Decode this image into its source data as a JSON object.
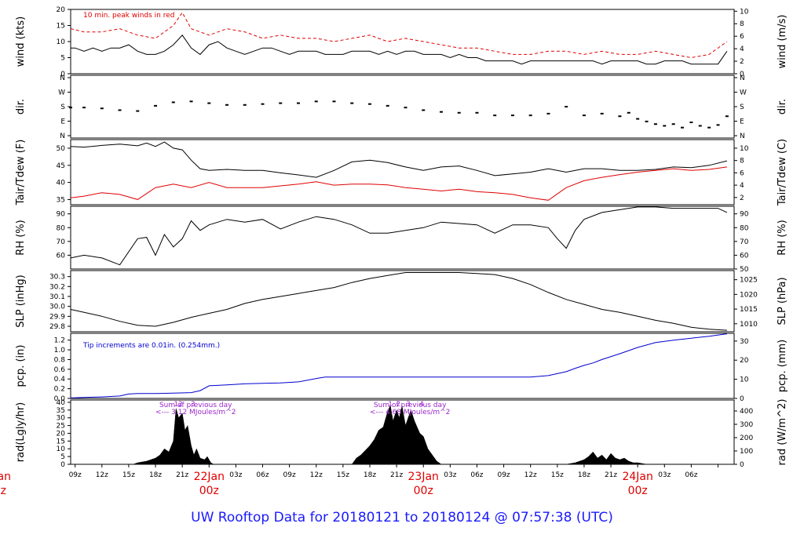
{
  "title": "UW Rooftop Data for 20180121  to  20180124 @ 07:57:38  (UTC)",
  "chart_data": [
    {
      "type": "line",
      "name": "wind",
      "ylabel": "wind (kts)",
      "ylabel_right": "wind (m/s)",
      "ylim": [
        0,
        20
      ],
      "yticks": [
        0,
        5,
        10,
        15,
        20
      ],
      "yticks_right": [
        0,
        2,
        4,
        6,
        8,
        10
      ],
      "ylim_right": [
        0,
        10.29
      ],
      "annotation": "10 min. peak winds in red",
      "series": [
        {
          "color": "#000000",
          "style": "line",
          "x": [
            8.5,
            9,
            10,
            11,
            12,
            13,
            14,
            15,
            16,
            17,
            18,
            19,
            20,
            21,
            22,
            23,
            24,
            25,
            26,
            27,
            28,
            29,
            30,
            31,
            32,
            33,
            34,
            35,
            36,
            37,
            38,
            39,
            40,
            41,
            42,
            43,
            44,
            45,
            46,
            47,
            48,
            49,
            50,
            51,
            52,
            53,
            54,
            55,
            56,
            57,
            58,
            59,
            60,
            61,
            62,
            63,
            64,
            65,
            66,
            67,
            68,
            69,
            70,
            71,
            72,
            73,
            74,
            75,
            76,
            77,
            78,
            79,
            80,
            81,
            82
          ],
          "values": [
            8,
            8,
            7,
            8,
            7,
            8,
            8,
            9,
            7,
            6,
            6,
            7,
            9,
            12,
            8,
            6,
            9,
            10,
            8,
            7,
            6,
            7,
            8,
            8,
            7,
            6,
            7,
            7,
            7,
            6,
            6,
            6,
            7,
            7,
            7,
            6,
            7,
            6,
            7,
            7,
            6,
            6,
            6,
            5,
            6,
            5,
            5,
            4,
            4,
            4,
            4,
            3,
            4,
            4,
            4,
            4,
            4,
            4,
            4,
            4,
            3,
            4,
            4,
            4,
            4,
            3,
            3,
            4,
            4,
            4,
            3,
            3,
            3,
            3,
            7
          ]
        },
        {
          "color": "#e00000",
          "style": "dash",
          "x": [
            8.5,
            10,
            12,
            14,
            16,
            18,
            20,
            21,
            22,
            24,
            26,
            28,
            30,
            32,
            34,
            36,
            38,
            40,
            42,
            44,
            46,
            48,
            50,
            52,
            54,
            56,
            58,
            60,
            62,
            64,
            66,
            68,
            70,
            72,
            74,
            76,
            78,
            80,
            82
          ],
          "values": [
            14,
            13,
            13,
            14,
            12,
            11,
            15,
            19,
            14,
            12,
            14,
            13,
            11,
            12,
            11,
            11,
            10,
            11,
            12,
            10,
            11,
            10,
            9,
            8,
            8,
            7,
            6,
            6,
            7,
            7,
            6,
            7,
            6,
            6,
            7,
            6,
            5,
            6,
            10
          ]
        }
      ]
    },
    {
      "type": "scatter",
      "name": "dir",
      "ylabel": "dir.",
      "ylabel_right": "dir.",
      "yticks_labels": [
        "N",
        "E",
        "S",
        "W",
        "N"
      ],
      "ylim": [
        0,
        360
      ],
      "series": [
        {
          "color": "#000000",
          "x": [
            8.5,
            10,
            12,
            14,
            16,
            18,
            20,
            22,
            24,
            26,
            28,
            30,
            32,
            34,
            36,
            38,
            40,
            42,
            44,
            46,
            48,
            50,
            52,
            54,
            56,
            58,
            60,
            62,
            64,
            66,
            68,
            70,
            71,
            72,
            73,
            74,
            75,
            76,
            77,
            78,
            79,
            80,
            81,
            82
          ],
          "values": [
            175,
            175,
            170,
            160,
            155,
            185,
            205,
            210,
            200,
            190,
            190,
            195,
            200,
            200,
            210,
            210,
            200,
            195,
            185,
            175,
            160,
            150,
            145,
            145,
            130,
            130,
            130,
            140,
            180,
            130,
            140,
            125,
            145,
            110,
            95,
            80,
            70,
            80,
            60,
            90,
            70,
            60,
            75,
            125
          ]
        }
      ]
    },
    {
      "type": "line",
      "name": "temp",
      "ylabel": "Tair/Tdew (F)",
      "ylabel_right": "Tair/Tdew (C)",
      "ylim": [
        33.5,
        52.5
      ],
      "yticks": [
        35,
        40,
        45,
        50
      ],
      "yticks_right": [
        2,
        4,
        6,
        8,
        10
      ],
      "series": [
        {
          "color": "#000000",
          "x": [
            8.5,
            10,
            12,
            14,
            16,
            17,
            18,
            19,
            20,
            21,
            22,
            23,
            24,
            26,
            28,
            30,
            32,
            34,
            36,
            38,
            40,
            42,
            44,
            46,
            48,
            50,
            52,
            54,
            56,
            58,
            60,
            62,
            64,
            66,
            68,
            70,
            72,
            74,
            76,
            78,
            80,
            82
          ],
          "values": [
            50.5,
            50.3,
            50.8,
            51.2,
            50.7,
            51.5,
            50.5,
            51.8,
            50,
            49.5,
            46.5,
            44,
            43.5,
            43.8,
            43.5,
            43.5,
            42.8,
            42.2,
            41.5,
            43.5,
            46,
            46.5,
            45.8,
            44.5,
            43.5,
            44.5,
            44.8,
            43.5,
            42,
            42.5,
            43,
            44,
            43,
            44,
            44,
            43.5,
            43.5,
            43.8,
            44.5,
            44.3,
            45,
            46.3
          ]
        },
        {
          "color": "#e00000",
          "x": [
            8.5,
            10,
            12,
            14,
            16,
            18,
            20,
            22,
            24,
            26,
            28,
            30,
            32,
            34,
            36,
            38,
            40,
            42,
            44,
            46,
            48,
            50,
            52,
            54,
            56,
            58,
            60,
            62,
            64,
            66,
            68,
            70,
            72,
            74,
            76,
            78,
            80,
            82
          ],
          "values": [
            35.5,
            36,
            37,
            36.5,
            35,
            38.5,
            39.5,
            38.5,
            40,
            38.5,
            38.5,
            38.5,
            39,
            39.5,
            40.2,
            39.2,
            39.5,
            39.5,
            39.3,
            38.5,
            38,
            37.5,
            38,
            37.3,
            37,
            36.5,
            35.5,
            34.8,
            38.5,
            40.5,
            41.5,
            42.3,
            43,
            43.5,
            44,
            43.5,
            43.8,
            44.5
          ]
        }
      ]
    },
    {
      "type": "line",
      "name": "rh",
      "ylabel": "RH (%)",
      "ylabel_right": "RH (%)",
      "ylim": [
        50,
        95.5
      ],
      "yticks": [
        60,
        70,
        80,
        90
      ],
      "yticks_right": [
        50,
        60,
        70,
        80,
        90
      ],
      "series": [
        {
          "color": "#000000",
          "x": [
            8.5,
            10,
            12,
            14,
            16,
            17,
            18,
            19,
            20,
            21,
            22,
            23,
            24,
            26,
            28,
            30,
            32,
            34,
            36,
            38,
            40,
            42,
            44,
            46,
            48,
            50,
            52,
            54,
            56,
            58,
            60,
            62,
            63,
            64,
            65,
            66,
            68,
            70,
            72,
            74,
            76,
            78,
            80,
            81,
            82
          ],
          "values": [
            58,
            60,
            58,
            53,
            72,
            73,
            60,
            75,
            66,
            72,
            85,
            78,
            82,
            86,
            84,
            86,
            79,
            84,
            88,
            86,
            82,
            76,
            76,
            78,
            80,
            84,
            83,
            82,
            76,
            82,
            82,
            80,
            72,
            65,
            78,
            86,
            91,
            93,
            95,
            95,
            94,
            94,
            94,
            94,
            91
          ]
        }
      ]
    },
    {
      "type": "line",
      "name": "slp",
      "ylabel": "SLP (inHg)",
      "ylabel_right": "SLP (hPa)",
      "ylim": [
        29.745,
        30.36
      ],
      "yticks": [
        29.8,
        29.9,
        30.0,
        30.1,
        30.2,
        30.3
      ],
      "yticks_right": [
        1010,
        1015,
        1020,
        1025
      ],
      "series": [
        {
          "color": "#000000",
          "x": [
            8.5,
            10,
            12,
            14,
            16,
            18,
            20,
            22,
            24,
            26,
            28,
            30,
            32,
            34,
            36,
            38,
            40,
            42,
            44,
            46,
            48,
            50,
            52,
            54,
            56,
            58,
            60,
            62,
            64,
            66,
            68,
            70,
            72,
            74,
            76,
            78,
            80,
            82
          ],
          "values": [
            29.97,
            29.94,
            29.9,
            29.85,
            29.81,
            29.8,
            29.84,
            29.89,
            29.93,
            29.97,
            30.03,
            30.07,
            30.1,
            30.13,
            30.16,
            30.19,
            30.24,
            30.28,
            30.31,
            30.34,
            30.34,
            30.34,
            30.34,
            30.33,
            30.32,
            30.28,
            30.22,
            30.14,
            30.07,
            30.02,
            29.97,
            29.94,
            29.9,
            29.86,
            29.83,
            29.79,
            29.77,
            29.76
          ]
        }
      ]
    },
    {
      "type": "line",
      "name": "pcp",
      "ylabel": "pcp. (in)",
      "ylabel_right": "pcp. (mm)",
      "ylim": [
        0,
        1.34
      ],
      "yticks": [
        0.0,
        0.2,
        0.4,
        0.6,
        0.8,
        1.0,
        1.2
      ],
      "yticks_right": [
        0,
        10,
        20,
        30
      ],
      "annotation": "Tip increments are 0.01in. (0.254mm.)",
      "series": [
        {
          "color": "#0000d0",
          "x": [
            8.5,
            10,
            12,
            14,
            15,
            16,
            18,
            20,
            22,
            23,
            24,
            26,
            28,
            30,
            32,
            34,
            36,
            37,
            38,
            40,
            42,
            44,
            46,
            48,
            50,
            52,
            54,
            56,
            58,
            60,
            62,
            64,
            65,
            66,
            67,
            68,
            70,
            72,
            74,
            76,
            78,
            80,
            82
          ],
          "values": [
            0.01,
            0.02,
            0.03,
            0.05,
            0.09,
            0.1,
            0.1,
            0.11,
            0.12,
            0.16,
            0.26,
            0.28,
            0.3,
            0.31,
            0.32,
            0.34,
            0.41,
            0.44,
            0.44,
            0.44,
            0.44,
            0.44,
            0.44,
            0.44,
            0.44,
            0.44,
            0.44,
            0.44,
            0.44,
            0.44,
            0.47,
            0.55,
            0.62,
            0.68,
            0.73,
            0.8,
            0.92,
            1.05,
            1.15,
            1.2,
            1.24,
            1.28,
            1.33
          ]
        }
      ]
    },
    {
      "type": "area",
      "name": "rad",
      "ylabel": "rad(Lgly/hr)",
      "ylabel_right": "rad (W/m^2)",
      "ylim": [
        0,
        41.5
      ],
      "yticks": [
        0,
        5,
        10,
        15,
        20,
        25,
        30,
        35,
        40
      ],
      "yticks_right": [
        0,
        100,
        200,
        300,
        400
      ],
      "annotations": [
        {
          "x": 22.5,
          "label": "Sum of previous day",
          "color": "#9a27c9"
        },
        {
          "x": 22.5,
          "label": "<--- 3.12 MJoules/m^2",
          "color": "#9a27c9"
        },
        {
          "x": 46.5,
          "label": "Sum of previous day",
          "color": "#9a27c9"
        },
        {
          "x": 46.5,
          "label": "<--- 4.68 MJoules/m^2",
          "color": "#9a27c9"
        }
      ],
      "markers": [
        {
          "x": 20.3,
          "label": "1"
        },
        {
          "x": 20.8,
          "label": "2"
        },
        {
          "x": 22.2,
          "label": "3"
        },
        {
          "x": 44.3,
          "label": "1"
        },
        {
          "x": 45.2,
          "label": "2"
        },
        {
          "x": 46.3,
          "label": "3"
        },
        {
          "x": 47.8,
          "label": "4"
        }
      ],
      "series": [
        {
          "color": "#000000",
          "x": [
            15.5,
            16,
            17,
            18,
            18.5,
            19,
            19.5,
            20,
            20.3,
            20.6,
            21,
            21.3,
            21.6,
            22,
            22.3,
            22.6,
            23,
            23.5,
            23.8,
            24.2,
            24.5,
            40,
            40.5,
            41,
            41.5,
            42,
            42.5,
            43,
            43.5,
            44,
            44.3,
            44.6,
            45,
            45.3,
            45.6,
            46,
            46.3,
            46.6,
            47,
            47.3,
            47.6,
            48,
            48.5,
            49,
            49.5,
            50,
            64,
            65,
            66,
            66.5,
            67,
            67.5,
            68,
            68.5,
            69,
            69.5,
            70,
            70.5,
            71,
            71.5,
            72,
            73
          ],
          "values": [
            0,
            1,
            2,
            4,
            6,
            10,
            8,
            15,
            36,
            30,
            33,
            22,
            25,
            12,
            6,
            10,
            4,
            3,
            5,
            1,
            0,
            0,
            4,
            6,
            9,
            12,
            16,
            22,
            24,
            34,
            38,
            28,
            35,
            30,
            38,
            25,
            30,
            35,
            28,
            24,
            20,
            18,
            10,
            6,
            2,
            0,
            0,
            1,
            3,
            5,
            8,
            4,
            6,
            3,
            7,
            4,
            3,
            4,
            2,
            1,
            1,
            0
          ]
        }
      ]
    }
  ],
  "x_axis": {
    "ticks": [
      "09z",
      "12z",
      "15z",
      "18z",
      "21z",
      "03z",
      "06z",
      "09z",
      "12z",
      "15z",
      "18z",
      "21z",
      "03z",
      "06z",
      "09z",
      "12z",
      "15z",
      "18z",
      "21z",
      "03z",
      "06z"
    ],
    "day_labels": [
      {
        "date": "22Jan",
        "time": "00z"
      },
      {
        "date": "23Jan",
        "time": "00z"
      },
      {
        "date": "24Jan",
        "time": "00z"
      }
    ],
    "partial_left_labels": {
      "date": "Jan",
      "time": "z"
    }
  }
}
